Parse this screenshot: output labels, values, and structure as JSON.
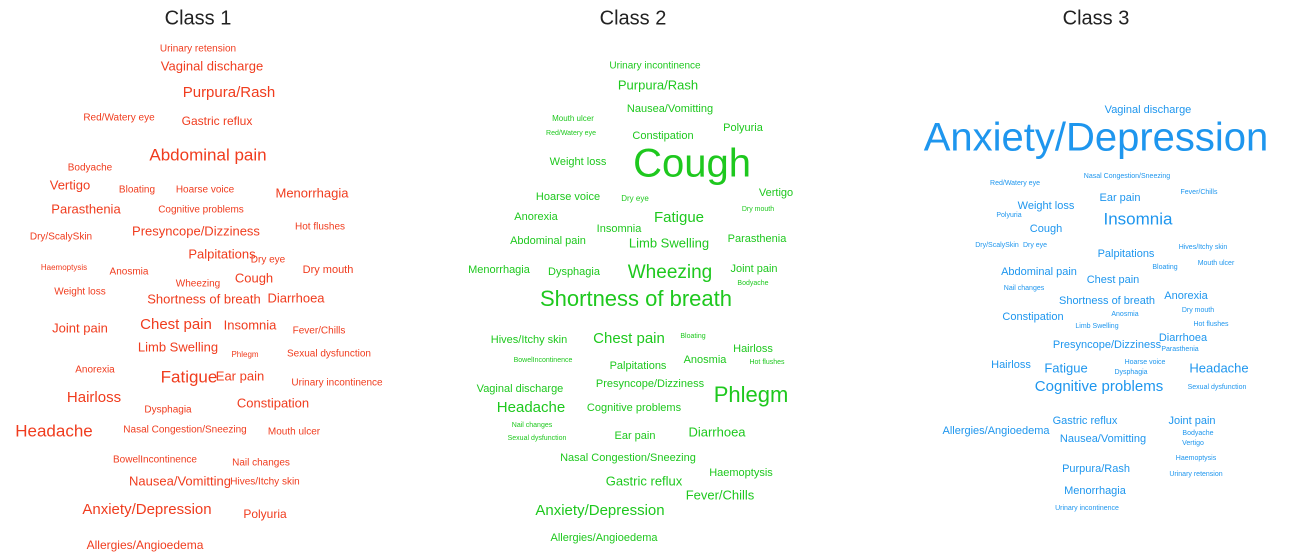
{
  "chart_data": [
    {
      "type": "wordcloud",
      "title": "Class 1",
      "color": "#f03c1e",
      "words": [
        "Urinary retension",
        "Vaginal discharge",
        "Purpura/Rash",
        "Red/Watery eye",
        "Gastric reflux",
        "Abdominal pain",
        "Bodyache",
        "Vertigo",
        "Bloating",
        "Hoarse voice",
        "Menorrhagia",
        "Parasthenia",
        "Cognitive problems",
        "Hot flushes",
        "Dry/ScalySkin",
        "Presyncope/Dizziness",
        "Palpitations",
        "Dry eye",
        "Haemoptysis",
        "Anosmia",
        "Wheezing",
        "Cough",
        "Dry mouth",
        "Weight loss",
        "Shortness of breath",
        "Diarrhoea",
        "Joint pain",
        "Chest pain",
        "Insomnia",
        "Fever/Chills",
        "Limb Swelling",
        "Phlegm",
        "Sexual dysfunction",
        "Anorexia",
        "Fatigue",
        "Ear pain",
        "Urinary incontinence",
        "Hairloss",
        "Dysphagia",
        "Constipation",
        "Headache",
        "Nasal Congestion/Sneezing",
        "Mouth ulcer",
        "BowelIncontinence",
        "Nail changes",
        "Nausea/Vomitting",
        "Hives/Itchy skin",
        "Anxiety/Depression",
        "Polyuria",
        "Allergies/Angioedema"
      ],
      "weights": [
        10,
        13,
        15,
        10,
        12,
        17,
        10,
        13,
        10,
        10,
        13,
        13,
        10,
        10,
        10,
        13,
        13,
        10,
        8,
        10,
        10,
        13,
        11,
        10,
        13,
        13,
        13,
        15,
        13,
        10,
        13,
        8,
        10,
        10,
        17,
        13,
        10,
        15,
        10,
        13,
        17,
        10,
        10,
        10,
        10,
        13,
        10,
        15,
        12,
        12
      ]
    },
    {
      "type": "wordcloud",
      "title": "Class 2",
      "color": "#1ec81e",
      "words": [
        "Urinary incontinence",
        "Purpura/Rash",
        "Nausea/Vomitting",
        "Mouth ulcer",
        "Red/Watery eye",
        "Constipation",
        "Polyuria",
        "Cough",
        "Weight loss",
        "Hoarse voice",
        "Dry eye",
        "Vertigo",
        "Dry mouth",
        "Anorexia",
        "Fatigue",
        "Insomnia",
        "Abdominal pain",
        "Limb Swelling",
        "Parasthenia",
        "Menorrhagia",
        "Dysphagia",
        "Wheezing",
        "Joint pain",
        "Bodyache",
        "Shortness of breath",
        "Hives/Itchy skin",
        "Chest pain",
        "Bloating",
        "Hairloss",
        "BowelIncontinence",
        "Palpitations",
        "Anosmia",
        "Hot flushes",
        "Vaginal discharge",
        "Presyncope/Dizziness",
        "Phlegm",
        "Headache",
        "Cognitive problems",
        "Nail changes",
        "Sexual dysfunction",
        "Ear pain",
        "Diarrhoea",
        "Nasal Congestion/Sneezing",
        "Haemoptysis",
        "Gastric reflux",
        "Fever/Chills",
        "Anxiety/Depression",
        "Allergies/Angioedema"
      ],
      "weights": [
        10,
        13,
        11,
        8,
        7,
        11,
        11,
        40,
        11,
        11,
        8,
        11,
        7,
        11,
        15,
        11,
        11,
        13,
        11,
        11,
        11,
        19,
        11,
        7,
        22,
        11,
        15,
        7,
        11,
        7,
        11,
        11,
        7,
        11,
        11,
        22,
        15,
        11,
        7,
        7,
        11,
        13,
        11,
        11,
        13,
        13,
        15,
        11
      ]
    },
    {
      "type": "wordcloud",
      "title": "Class 3",
      "color": "#1e96ee",
      "words": [
        "Vaginal discharge",
        "Anxiety/Depression",
        "Red/Watery eye",
        "Nasal Congestion/Sneezing",
        "Ear pain",
        "Fever/Chills",
        "Weight loss",
        "Polyuria",
        "Insomnia",
        "Cough",
        "Dry/ScalySkin",
        "Dry eye",
        "Palpitations",
        "Hives/Itchy skin",
        "Bloating",
        "Mouth ulcer",
        "Abdominal pain",
        "Chest pain",
        "Nail changes",
        "Anorexia",
        "Shortness of breath",
        "Dry mouth",
        "Constipation",
        "Anosmia",
        "Limb Swelling",
        "Hot flushes",
        "Diarrhoea",
        "Presyncope/Dizziness",
        "Parasthenia",
        "Hairloss",
        "Hoarse voice",
        "Fatigue",
        "Dysphagia",
        "Headache",
        "Cognitive problems",
        "Sexual dysfunction",
        "Gastric reflux",
        "Joint pain",
        "Bodyache",
        "Allergies/Angioedema",
        "Nausea/Vomitting",
        "Vertigo",
        "Haemoptysis",
        "Purpura/Rash",
        "Urinary retension",
        "Menorrhagia",
        "Urinary incontinence"
      ],
      "weights": [
        11,
        40,
        7,
        7,
        11,
        7,
        11,
        7,
        17,
        11,
        7,
        7,
        11,
        7,
        7,
        7,
        11,
        11,
        7,
        11,
        11,
        7,
        11,
        7,
        7,
        7,
        11,
        11,
        7,
        11,
        7,
        13,
        7,
        13,
        15,
        7,
        11,
        11,
        7,
        11,
        11,
        7,
        7,
        11,
        7,
        11,
        7
      ]
    }
  ]
}
